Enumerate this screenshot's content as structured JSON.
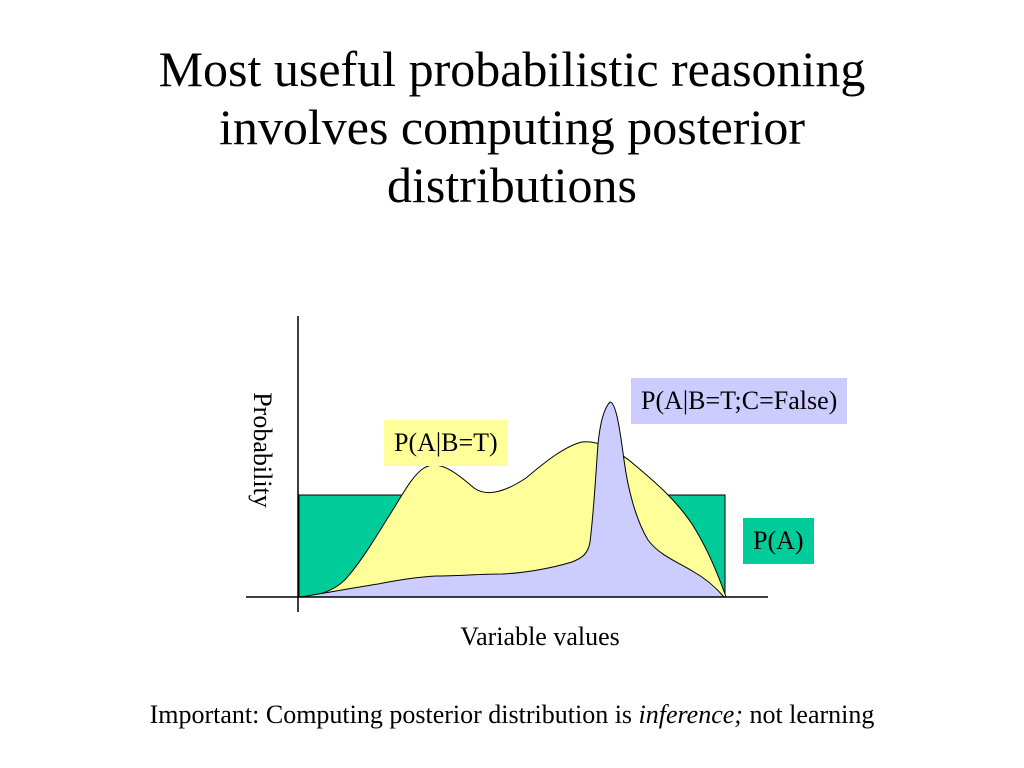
{
  "title": {
    "line1": "Most useful probabilistic reasoning",
    "line2": "involves computing posterior",
    "line3": "distributions"
  },
  "diagram": {
    "y_axis_label": "Probability",
    "x_axis_label": "Variable values",
    "labels": {
      "prior": "P(A)",
      "posterior_b": "P(A|B=T)",
      "posterior_bc": "P(A|B=T;C=False)"
    },
    "colors": {
      "prior": "#00cc99",
      "posterior_b": "#ffff99",
      "posterior_bc": "#ccccff"
    }
  },
  "note": {
    "prefix": "Important: Computing posterior distribution is ",
    "emphasis": "inference;",
    "suffix": " not learning"
  }
}
